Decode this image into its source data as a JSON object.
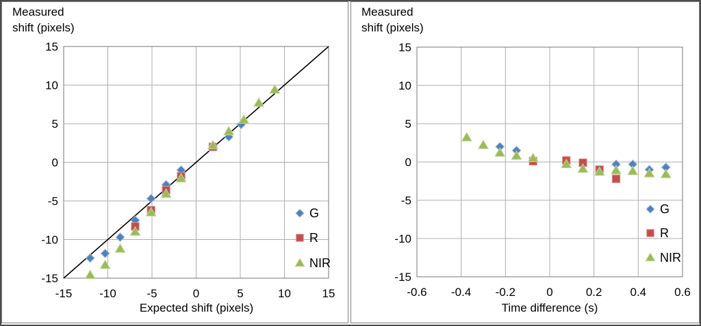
{
  "figure": {
    "background": "#ffffff",
    "outer_border_color": "#4c4c4c",
    "panel_border_color": "#7f7f7f",
    "grid_color": "#acacac",
    "plot_border_color": "#8c8c8c",
    "axis_text_color": "#000000"
  },
  "chart_data": [
    {
      "type": "scatter",
      "title": "Measured shift (pixels)",
      "title_lines": [
        "Measured",
        "shift (pixels)"
      ],
      "xlabel": "Expected shift (pixels)",
      "ylabel": "Measured shift (pixels)",
      "xlim": [
        -15,
        15
      ],
      "ylim": [
        -15,
        15
      ],
      "grid": true,
      "legend_position": "inside-right",
      "xticks": {
        "values": [
          -15,
          -10,
          -5,
          0,
          5,
          10,
          15
        ],
        "labels": [
          "-15",
          "-10",
          "-5",
          "0",
          "5",
          "10",
          "15"
        ]
      },
      "yticks": {
        "values": [
          15,
          10,
          5,
          0,
          -5,
          -10,
          -15
        ],
        "labels": [
          "15",
          "10",
          "5",
          "0",
          "-5",
          "-10",
          "-15"
        ]
      },
      "identity_line": {
        "x1": -15,
        "y1": -15,
        "x2": 15,
        "y2": 15,
        "color": "#000000"
      },
      "series": [
        {
          "name": "G",
          "marker": "diamond",
          "fill": "#4F81BD",
          "edge": "#9DB7D8",
          "points": [
            [
              -12,
              -12.4
            ],
            [
              -10.3,
              -11.8
            ],
            [
              -8.6,
              -9.7
            ],
            [
              -6.9,
              -7.5
            ],
            [
              -5.1,
              -4.7
            ],
            [
              -3.4,
              -2.9
            ],
            [
              -1.7,
              -1.0
            ],
            [
              1.9,
              2.1
            ],
            [
              3.7,
              3.3
            ],
            [
              5.1,
              4.9
            ]
          ]
        },
        {
          "name": "R",
          "marker": "square",
          "fill": "#C0504D",
          "edge": "#D99694",
          "points": [
            [
              -6.9,
              -8.3
            ],
            [
              -5.1,
              -6.2
            ],
            [
              -3.4,
              -3.6
            ],
            [
              -1.7,
              -1.8
            ],
            [
              1.9,
              2.0
            ]
          ]
        },
        {
          "name": "NIR",
          "marker": "triangle",
          "fill": "#9BBB59",
          "edge": "#C3D69B",
          "points": [
            [
              -12,
              -14.6
            ],
            [
              -10.3,
              -13.3
            ],
            [
              -8.6,
              -11.2
            ],
            [
              -6.9,
              -9.0
            ],
            [
              -5.1,
              -6.5
            ],
            [
              -3.4,
              -4.1
            ],
            [
              -1.7,
              -2.1
            ],
            [
              1.9,
              2.2
            ],
            [
              3.7,
              4.0
            ],
            [
              5.4,
              5.5
            ],
            [
              7.1,
              7.7
            ],
            [
              8.9,
              9.4
            ]
          ]
        }
      ]
    },
    {
      "type": "scatter",
      "title": "Measured shift (pixels)",
      "title_lines": [
        "Measured",
        "shift (pixels)"
      ],
      "xlabel": "Time difference (s)",
      "ylabel": "Measured shift (pixels)",
      "xlim": [
        -0.6,
        0.6
      ],
      "ylim": [
        -15,
        15
      ],
      "grid": true,
      "legend_position": "inside-right",
      "xticks": {
        "values": [
          -0.6,
          -0.4,
          -0.2,
          0,
          0.2,
          0.4,
          0.6
        ],
        "labels": [
          "-0.6",
          "-0.4",
          "-0.2",
          "0",
          "0.2",
          "0.4",
          "0.6"
        ]
      },
      "yticks": {
        "values": [
          15,
          10,
          5,
          0,
          -5,
          -10,
          -15
        ],
        "labels": [
          "15",
          "10",
          "5",
          "0",
          "-5",
          "-10",
          "-15"
        ]
      },
      "series": [
        {
          "name": "G",
          "marker": "diamond",
          "fill": "#4F81BD",
          "edge": "#9DB7D8",
          "points": [
            [
              -0.225,
              2.0
            ],
            [
              -0.15,
              1.5
            ],
            [
              0.3,
              -0.3
            ],
            [
              0.375,
              -0.3
            ],
            [
              0.45,
              -1.0
            ],
            [
              0.525,
              -0.7
            ]
          ]
        },
        {
          "name": "R",
          "marker": "square",
          "fill": "#C0504D",
          "edge": "#D99694",
          "points": [
            [
              -0.075,
              0.1
            ],
            [
              0.075,
              0.2
            ],
            [
              0.15,
              -0.1
            ],
            [
              0.225,
              -1.0
            ],
            [
              0.3,
              -2.2
            ]
          ]
        },
        {
          "name": "NIR",
          "marker": "triangle",
          "fill": "#9BBB59",
          "edge": "#C3D69B",
          "points": [
            [
              -0.375,
              3.2
            ],
            [
              -0.3,
              2.2
            ],
            [
              -0.225,
              1.2
            ],
            [
              -0.15,
              0.8
            ],
            [
              -0.075,
              0.5
            ],
            [
              0.075,
              -0.3
            ],
            [
              0.15,
              -0.9
            ],
            [
              0.225,
              -1.3
            ],
            [
              0.3,
              -1.1
            ],
            [
              0.375,
              -1.2
            ],
            [
              0.45,
              -1.5
            ],
            [
              0.525,
              -1.6
            ]
          ]
        }
      ]
    }
  ]
}
